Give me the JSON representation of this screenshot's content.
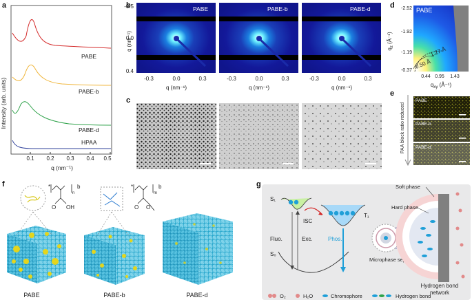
{
  "panels": {
    "a": {
      "letter": "a",
      "ylabel": "Intensity (arb. units)",
      "xlabel": "q (nm⁻¹)",
      "xticks": [
        "0.1",
        "0.2",
        "0.3",
        "0.4",
        "0.5"
      ],
      "series": [
        {
          "name": "PABE",
          "color": "#d42a2a"
        },
        {
          "name": "PABE-b",
          "color": "#f0b63c"
        },
        {
          "name": "PABE-d",
          "color": "#2fa24a"
        },
        {
          "name": "HPAA",
          "color": "#2d3f9a"
        }
      ]
    },
    "b": {
      "letter": "b",
      "ylabel": "q (nm⁻¹)",
      "xlabel": "q (nm⁻¹)",
      "yticks": [
        "-0.5",
        "0.0",
        "0.4"
      ],
      "xticks": [
        "-0.3",
        "0.0",
        "0.3"
      ],
      "tiles": [
        "PABE",
        "PABE-b",
        "PABE-d"
      ]
    },
    "c": {
      "letter": "c"
    },
    "d": {
      "letter": "d",
      "title": "PABE",
      "ylabel": "qₓ (Å⁻¹)",
      "xlabel": "qᵧ (Å⁻¹)",
      "ylabel_sym": "q",
      "ylabel_sub": "z",
      "xlabel_sym": "q",
      "xlabel_sub": "xy",
      "unit": "(Å⁻¹)",
      "yticks": [
        "-2.52",
        "-1.92",
        "-1.19",
        "-0.37"
      ],
      "xticks": [
        "0.44",
        "0.95",
        "1.43"
      ],
      "annotations": [
        "1.27 Å",
        "0.50 Å"
      ]
    },
    "e": {
      "letter": "e",
      "ylabel": "PAA block ratio reduced",
      "tiles": [
        "PABE",
        "PABE-b",
        "PABE-d"
      ]
    },
    "f": {
      "letter": "f",
      "labels": [
        "PABE",
        "PABE-b",
        "PABE-d"
      ],
      "formula1": {
        "sub_n": "n",
        "b": "b",
        "o": "O",
        "oh": "OH"
      },
      "formula2": {
        "sub_m": "m",
        "b": "b",
        "o": "O"
      }
    },
    "g": {
      "letter": "g",
      "states": {
        "s1": "S₁",
        "s0": "S₀",
        "t1": "T₁"
      },
      "arrows": {
        "isc": "ISC",
        "fluo": "Fluo.",
        "exc": "Exc.",
        "phos": "Phos."
      },
      "phases": {
        "soft": "Soft phase",
        "hard": "Hard phase"
      },
      "microphase": "Microphase separation",
      "network": "Hydrogen bond network",
      "legend": [
        "O₂",
        "H₂O",
        "Chromophore",
        "Hydrogen bond"
      ]
    }
  }
}
